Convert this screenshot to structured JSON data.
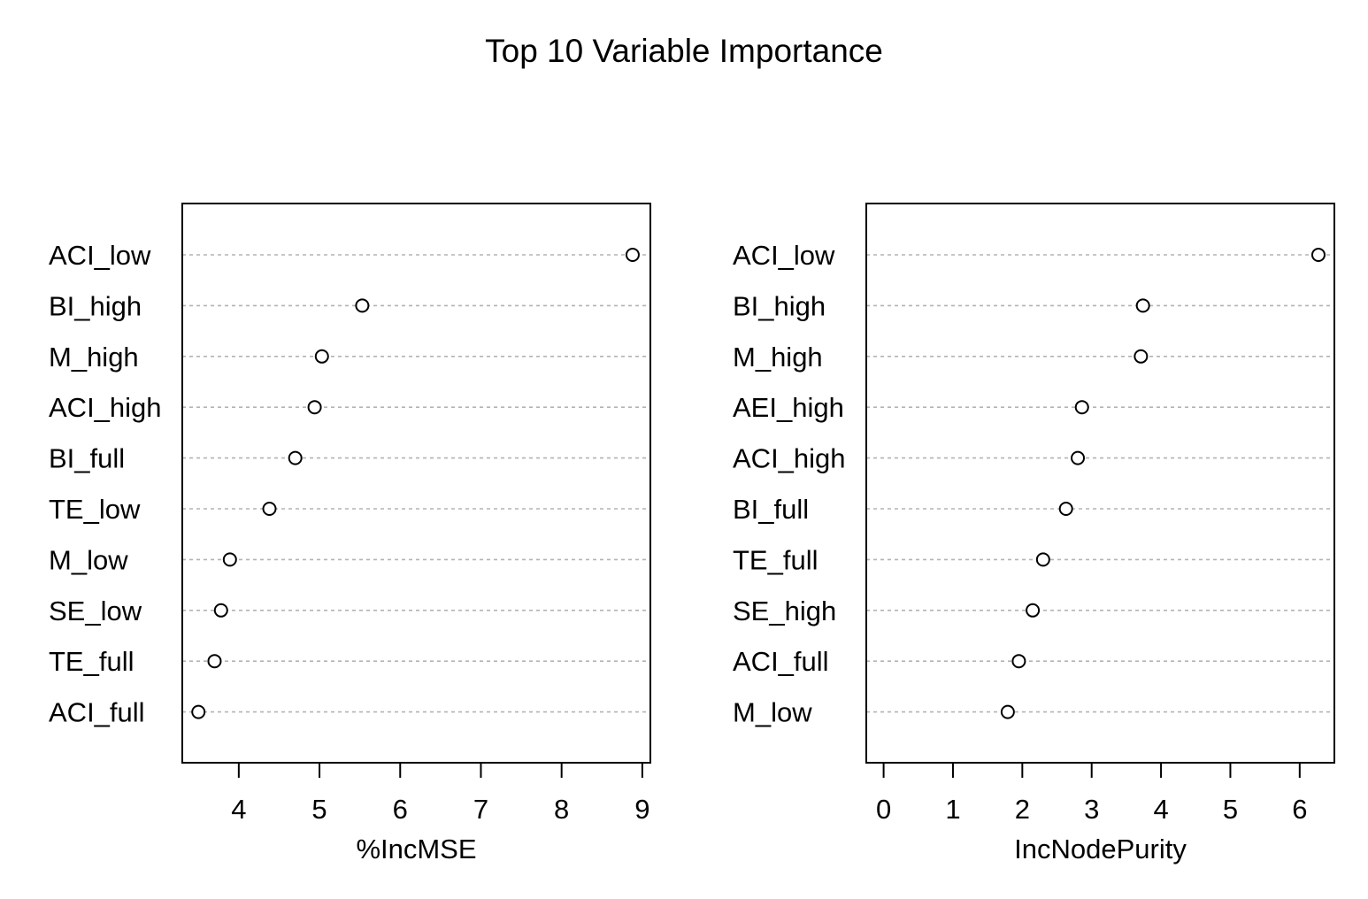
{
  "chart_data": {
    "type": "scatter",
    "title": "Top 10 Variable Importance",
    "panels": [
      {
        "xlabel": "%IncMSE",
        "categories": [
          "ACI_low",
          "BI_high",
          "M_high",
          "ACI_high",
          "BI_full",
          "TE_low",
          "M_low",
          "SE_low",
          "TE_full",
          "ACI_full"
        ],
        "values": [
          8.88,
          5.53,
          5.03,
          4.94,
          4.7,
          4.38,
          3.89,
          3.78,
          3.7,
          3.5
        ],
        "xticks": [
          4,
          5,
          6,
          7,
          8,
          9
        ],
        "xlim": [
          3.3,
          9.1
        ],
        "grid": "dotted horizontal lines"
      },
      {
        "xlabel": "IncNodePurity",
        "categories": [
          "ACI_low",
          "BI_high",
          "M_high",
          "AEI_high",
          "ACI_high",
          "BI_full",
          "TE_full",
          "SE_high",
          "ACI_full",
          "M_low"
        ],
        "values": [
          6.27,
          3.74,
          3.71,
          2.86,
          2.8,
          2.63,
          2.3,
          2.15,
          1.95,
          1.79
        ],
        "xticks": [
          0,
          1,
          2,
          3,
          4,
          5,
          6
        ],
        "xlim": [
          -0.25,
          6.5
        ],
        "grid": "dotted horizontal lines"
      }
    ]
  }
}
